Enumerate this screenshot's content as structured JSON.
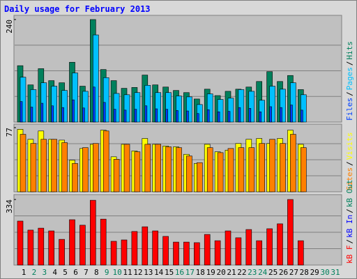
{
  "chart_data": [
    {
      "type": "bar",
      "title": "Daily usage for February 2013",
      "ylim": [
        0,
        240
      ],
      "yticks": [
        240
      ],
      "series": [
        {
          "name": "Hits",
          "color": "#00805c",
          "values": [
            132,
            87,
            125,
            97,
            92,
            140,
            84,
            240,
            123,
            97,
            79,
            81,
            110,
            87,
            82,
            74,
            69,
            54,
            77,
            62,
            72,
            77,
            82,
            95,
            118,
            95,
            109,
            76,
            null,
            null,
            null
          ]
        },
        {
          "name": "Pages",
          "color": "#00c0ff",
          "values": [
            105,
            76,
            92,
            84,
            74,
            115,
            72,
            204,
            104,
            67,
            64,
            69,
            86,
            69,
            69,
            61,
            59,
            41,
            66,
            53,
            56,
            76,
            72,
            51,
            84,
            77,
            92,
            64,
            null,
            null,
            null
          ]
        },
        {
          "name": "Files",
          "color": "#0040ff",
          "values": [
            48,
            35,
            44,
            38,
            34,
            52,
            33,
            82,
            46,
            30,
            28,
            30,
            38,
            31,
            30,
            27,
            26,
            20,
            29,
            24,
            25,
            34,
            32,
            24,
            36,
            34,
            40,
            28,
            null,
            null,
            null
          ]
        }
      ]
    },
    {
      "type": "bar",
      "ylim": [
        0,
        77
      ],
      "yticks": [
        77
      ],
      "series": [
        {
          "name": "Visits",
          "color": "#ffff00",
          "values": [
            75,
            63,
            73,
            63,
            62,
            38,
            52,
            57,
            74,
            42,
            57,
            49,
            64,
            57,
            55,
            54,
            45,
            34,
            57,
            48,
            50,
            58,
            63,
            64,
            58,
            64,
            74,
            57,
            null,
            null,
            null
          ]
        },
        {
          "name": "Sites",
          "color": "#ff8000",
          "values": [
            69,
            58,
            63,
            63,
            59,
            34,
            53,
            58,
            73,
            39,
            57,
            48,
            57,
            57,
            54,
            53,
            43,
            35,
            53,
            47,
            52,
            53,
            53,
            58,
            63,
            58,
            69,
            53,
            null,
            null,
            null
          ]
        }
      ]
    },
    {
      "type": "bar",
      "ylim": [
        0,
        334
      ],
      "yticks": [
        334
      ],
      "categories": [
        "1",
        "2",
        "3",
        "4",
        "5",
        "6",
        "7",
        "8",
        "9",
        "10",
        "11",
        "12",
        "13",
        "14",
        "15",
        "16",
        "17",
        "18",
        "19",
        "20",
        "21",
        "22",
        "23",
        "24",
        "25",
        "26",
        "27",
        "28",
        "29",
        "30",
        "31"
      ],
      "x_label_colors": [
        "#000000",
        "#00805c",
        "#00805c",
        "#000000",
        "#000000",
        "#000000",
        "#000000",
        "#000000",
        "#00805c",
        "#00805c",
        "#000000",
        "#000000",
        "#000000",
        "#000000",
        "#000000",
        "#00805c",
        "#00805c",
        "#000000",
        "#000000",
        "#000000",
        "#000000",
        "#000000",
        "#00805c",
        "#00805c",
        "#000000",
        "#000000",
        "#000000",
        "#000000",
        "#000000",
        "#00805c",
        "#00805c"
      ],
      "series": [
        {
          "name": "kB F",
          "color": "#ff0000",
          "values": [
            224,
            178,
            188,
            174,
            131,
            231,
            203,
            330,
            234,
            121,
            128,
            171,
            195,
            174,
            146,
            117,
            117,
            114,
            156,
            124,
            174,
            139,
            181,
            124,
            185,
            210,
            334,
            124,
            null,
            null,
            null
          ]
        }
      ],
      "legend_extra": [
        {
          "name": "kB In",
          "color": "#0000ff"
        },
        {
          "name": "kB Out",
          "color": "#00805c"
        }
      ]
    }
  ]
}
